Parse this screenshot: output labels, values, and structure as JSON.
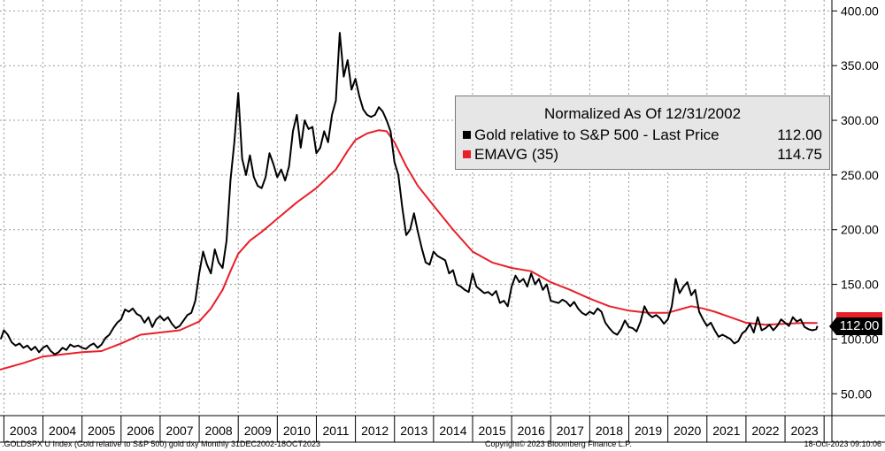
{
  "chart_data": {
    "type": "line",
    "legend": {
      "title": "Normalized As Of 12/31/2002",
      "entries": [
        {
          "name": "Gold relative to S&P 500 - Last Price",
          "value": "112.00",
          "color": "#000000"
        },
        {
          "name": "EMAVG (35)",
          "value": "114.75",
          "color": "#e8202a"
        }
      ],
      "placement": "top-right"
    },
    "y_axis": {
      "position": "right",
      "ylim": [
        30,
        410
      ],
      "ticks": [
        50,
        100,
        150,
        200,
        250,
        300,
        350,
        400
      ],
      "tick_labels": [
        "50.00",
        "100.00",
        "150.00",
        "200.00",
        "250.00",
        "300.00",
        "350.00",
        "400.00"
      ]
    },
    "x_axis": {
      "range": [
        2002.9,
        2024.2
      ],
      "year_labels": [
        "2003",
        "2004",
        "2005",
        "2006",
        "2007",
        "2008",
        "2009",
        "2010",
        "2011",
        "2012",
        "2013",
        "2014",
        "2015",
        "2016",
        "2017",
        "2018",
        "2019",
        "2020",
        "2021",
        "2022",
        "2023"
      ],
      "year_starts": [
        2003,
        2004,
        2005,
        2006,
        2007,
        2008,
        2009,
        2010,
        2011,
        2012,
        2013,
        2014,
        2015,
        2016,
        2017,
        2018,
        2019,
        2020,
        2021,
        2022,
        2023,
        2024
      ]
    },
    "grid": "dashed",
    "last_price_label": "112.00",
    "series": [
      {
        "name": "Gold relative to S&P 500",
        "color": "#000000",
        "points": [
          [
            2002.92,
            100
          ],
          [
            2003.0,
            108
          ],
          [
            2003.1,
            104
          ],
          [
            2003.2,
            97
          ],
          [
            2003.3,
            94
          ],
          [
            2003.4,
            96
          ],
          [
            2003.5,
            92
          ],
          [
            2003.6,
            94
          ],
          [
            2003.7,
            90
          ],
          [
            2003.8,
            93
          ],
          [
            2003.9,
            88
          ],
          [
            2004.0,
            92
          ],
          [
            2004.1,
            94
          ],
          [
            2004.2,
            89
          ],
          [
            2004.3,
            86
          ],
          [
            2004.4,
            88
          ],
          [
            2004.5,
            92
          ],
          [
            2004.6,
            90
          ],
          [
            2004.7,
            95
          ],
          [
            2004.8,
            93
          ],
          [
            2004.9,
            94
          ],
          [
            2005.0,
            92
          ],
          [
            2005.1,
            91
          ],
          [
            2005.2,
            94
          ],
          [
            2005.3,
            96
          ],
          [
            2005.4,
            92
          ],
          [
            2005.5,
            95
          ],
          [
            2005.6,
            101
          ],
          [
            2005.7,
            104
          ],
          [
            2005.8,
            110
          ],
          [
            2005.9,
            115
          ],
          [
            2006.0,
            118
          ],
          [
            2006.1,
            127
          ],
          [
            2006.2,
            125
          ],
          [
            2006.3,
            128
          ],
          [
            2006.4,
            123
          ],
          [
            2006.5,
            121
          ],
          [
            2006.6,
            115
          ],
          [
            2006.7,
            120
          ],
          [
            2006.8,
            111
          ],
          [
            2006.9,
            118
          ],
          [
            2007.0,
            121
          ],
          [
            2007.1,
            117
          ],
          [
            2007.2,
            120
          ],
          [
            2007.3,
            114
          ],
          [
            2007.4,
            110
          ],
          [
            2007.5,
            112
          ],
          [
            2007.6,
            117
          ],
          [
            2007.7,
            122
          ],
          [
            2007.8,
            124
          ],
          [
            2007.9,
            135
          ],
          [
            2008.0,
            160
          ],
          [
            2008.1,
            180
          ],
          [
            2008.2,
            168
          ],
          [
            2008.3,
            160
          ],
          [
            2008.4,
            182
          ],
          [
            2008.5,
            170
          ],
          [
            2008.6,
            165
          ],
          [
            2008.7,
            190
          ],
          [
            2008.8,
            245
          ],
          [
            2008.9,
            280
          ],
          [
            2009.0,
            325
          ],
          [
            2009.1,
            265
          ],
          [
            2009.2,
            250
          ],
          [
            2009.3,
            268
          ],
          [
            2009.4,
            248
          ],
          [
            2009.5,
            240
          ],
          [
            2009.6,
            238
          ],
          [
            2009.7,
            248
          ],
          [
            2009.8,
            270
          ],
          [
            2009.9,
            260
          ],
          [
            2010.0,
            248
          ],
          [
            2010.1,
            255
          ],
          [
            2010.2,
            245
          ],
          [
            2010.3,
            258
          ],
          [
            2010.4,
            290
          ],
          [
            2010.5,
            305
          ],
          [
            2010.6,
            275
          ],
          [
            2010.7,
            300
          ],
          [
            2010.8,
            292
          ],
          [
            2010.9,
            294
          ],
          [
            2011.0,
            270
          ],
          [
            2011.1,
            275
          ],
          [
            2011.2,
            290
          ],
          [
            2011.3,
            280
          ],
          [
            2011.4,
            305
          ],
          [
            2011.5,
            318
          ],
          [
            2011.6,
            380
          ],
          [
            2011.7,
            340
          ],
          [
            2011.8,
            355
          ],
          [
            2011.9,
            328
          ],
          [
            2012.0,
            338
          ],
          [
            2012.1,
            322
          ],
          [
            2012.2,
            310
          ],
          [
            2012.3,
            305
          ],
          [
            2012.4,
            303
          ],
          [
            2012.5,
            305
          ],
          [
            2012.6,
            312
          ],
          [
            2012.7,
            308
          ],
          [
            2012.8,
            300
          ],
          [
            2012.9,
            290
          ],
          [
            2013.0,
            262
          ],
          [
            2013.1,
            250
          ],
          [
            2013.2,
            220
          ],
          [
            2013.3,
            195
          ],
          [
            2013.4,
            200
          ],
          [
            2013.5,
            215
          ],
          [
            2013.6,
            198
          ],
          [
            2013.7,
            183
          ],
          [
            2013.8,
            170
          ],
          [
            2013.9,
            168
          ],
          [
            2014.0,
            180
          ],
          [
            2014.1,
            176
          ],
          [
            2014.2,
            174
          ],
          [
            2014.3,
            172
          ],
          [
            2014.4,
            160
          ],
          [
            2014.5,
            163
          ],
          [
            2014.6,
            150
          ],
          [
            2014.7,
            148
          ],
          [
            2014.8,
            145
          ],
          [
            2014.9,
            143
          ],
          [
            2015.0,
            160
          ],
          [
            2015.1,
            148
          ],
          [
            2015.2,
            145
          ],
          [
            2015.3,
            142
          ],
          [
            2015.4,
            143
          ],
          [
            2015.5,
            140
          ],
          [
            2015.6,
            144
          ],
          [
            2015.7,
            133
          ],
          [
            2015.8,
            135
          ],
          [
            2015.9,
            130
          ],
          [
            2016.0,
            148
          ],
          [
            2016.1,
            158
          ],
          [
            2016.2,
            152
          ],
          [
            2016.3,
            155
          ],
          [
            2016.4,
            148
          ],
          [
            2016.5,
            160
          ],
          [
            2016.6,
            150
          ],
          [
            2016.7,
            155
          ],
          [
            2016.8,
            145
          ],
          [
            2016.9,
            150
          ],
          [
            2017.0,
            135
          ],
          [
            2017.1,
            134
          ],
          [
            2017.2,
            133
          ],
          [
            2017.3,
            136
          ],
          [
            2017.4,
            134
          ],
          [
            2017.5,
            130
          ],
          [
            2017.6,
            134
          ],
          [
            2017.7,
            128
          ],
          [
            2017.8,
            124
          ],
          [
            2017.9,
            122
          ],
          [
            2018.0,
            125
          ],
          [
            2018.1,
            123
          ],
          [
            2018.2,
            128
          ],
          [
            2018.3,
            125
          ],
          [
            2018.4,
            115
          ],
          [
            2018.5,
            110
          ],
          [
            2018.6,
            106
          ],
          [
            2018.7,
            104
          ],
          [
            2018.8,
            109
          ],
          [
            2018.9,
            117
          ],
          [
            2019.0,
            111
          ],
          [
            2019.1,
            110
          ],
          [
            2019.2,
            107
          ],
          [
            2019.3,
            116
          ],
          [
            2019.4,
            130
          ],
          [
            2019.5,
            123
          ],
          [
            2019.6,
            120
          ],
          [
            2019.7,
            122
          ],
          [
            2019.8,
            119
          ],
          [
            2019.9,
            114
          ],
          [
            2020.0,
            118
          ],
          [
            2020.1,
            130
          ],
          [
            2020.2,
            155
          ],
          [
            2020.3,
            142
          ],
          [
            2020.4,
            148
          ],
          [
            2020.5,
            152
          ],
          [
            2020.6,
            140
          ],
          [
            2020.7,
            145
          ],
          [
            2020.8,
            125
          ],
          [
            2020.9,
            118
          ],
          [
            2021.0,
            112
          ],
          [
            2021.1,
            115
          ],
          [
            2021.2,
            108
          ],
          [
            2021.3,
            102
          ],
          [
            2021.4,
            104
          ],
          [
            2021.5,
            102
          ],
          [
            2021.6,
            100
          ],
          [
            2021.7,
            96
          ],
          [
            2021.8,
            98
          ],
          [
            2021.9,
            105
          ],
          [
            2022.0,
            108
          ],
          [
            2022.1,
            114
          ],
          [
            2022.2,
            106
          ],
          [
            2022.3,
            120
          ],
          [
            2022.4,
            108
          ],
          [
            2022.5,
            110
          ],
          [
            2022.6,
            113
          ],
          [
            2022.7,
            108
          ],
          [
            2022.8,
            112
          ],
          [
            2022.9,
            118
          ],
          [
            2023.0,
            115
          ],
          [
            2023.1,
            112
          ],
          [
            2023.2,
            120
          ],
          [
            2023.3,
            116
          ],
          [
            2023.4,
            118
          ],
          [
            2023.5,
            111
          ],
          [
            2023.6,
            109
          ],
          [
            2023.7,
            108
          ],
          [
            2023.8,
            109
          ],
          [
            2023.83,
            112
          ]
        ]
      },
      {
        "name": "EMAVG (35)",
        "color": "#e8202a",
        "points": [
          [
            2002.9,
            72
          ],
          [
            2003.5,
            78
          ],
          [
            2004.0,
            84
          ],
          [
            2004.5,
            86
          ],
          [
            2005.0,
            88
          ],
          [
            2005.5,
            89
          ],
          [
            2006.0,
            96
          ],
          [
            2006.5,
            104
          ],
          [
            2007.0,
            106
          ],
          [
            2007.5,
            108
          ],
          [
            2008.0,
            116
          ],
          [
            2008.3,
            128
          ],
          [
            2008.6,
            145
          ],
          [
            2008.8,
            162
          ],
          [
            2009.0,
            178
          ],
          [
            2009.3,
            190
          ],
          [
            2009.6,
            198
          ],
          [
            2010.0,
            210
          ],
          [
            2010.5,
            225
          ],
          [
            2011.0,
            238
          ],
          [
            2011.5,
            255
          ],
          [
            2011.8,
            272
          ],
          [
            2012.0,
            282
          ],
          [
            2012.3,
            288
          ],
          [
            2012.6,
            291
          ],
          [
            2012.8,
            290
          ],
          [
            2013.0,
            280
          ],
          [
            2013.3,
            258
          ],
          [
            2013.6,
            240
          ],
          [
            2014.0,
            222
          ],
          [
            2014.5,
            200
          ],
          [
            2015.0,
            180
          ],
          [
            2015.5,
            170
          ],
          [
            2016.0,
            165
          ],
          [
            2016.5,
            162
          ],
          [
            2017.0,
            152
          ],
          [
            2017.5,
            145
          ],
          [
            2018.0,
            137
          ],
          [
            2018.5,
            130
          ],
          [
            2019.0,
            126
          ],
          [
            2019.5,
            124
          ],
          [
            2020.0,
            124
          ],
          [
            2020.3,
            127
          ],
          [
            2020.6,
            130
          ],
          [
            2020.9,
            128
          ],
          [
            2021.2,
            125
          ],
          [
            2021.6,
            120
          ],
          [
            2022.0,
            115
          ],
          [
            2022.5,
            113
          ],
          [
            2023.0,
            114
          ],
          [
            2023.5,
            114.8
          ],
          [
            2023.83,
            114.75
          ]
        ]
      }
    ]
  },
  "footer": {
    "left": ".GOLDSPX U Index (Gold relative to S&P 500) gold dxy  Monthly 31DEC2002-18OCT2023",
    "center": "Copyright© 2023 Bloomberg Finance L.P.",
    "right": "18-Oct-2023 09:10:06"
  }
}
